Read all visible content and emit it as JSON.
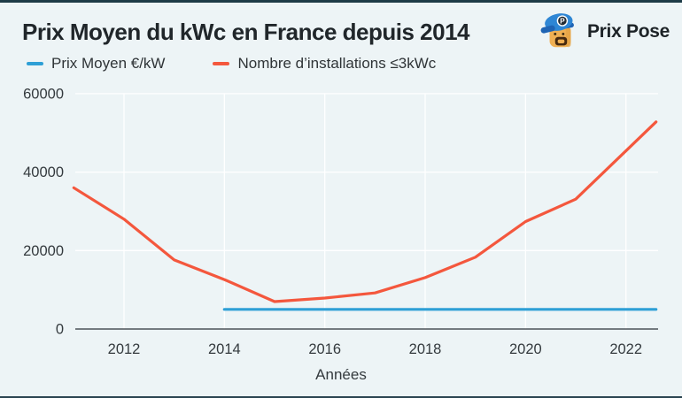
{
  "page": {
    "title": "Prix Moyen du kWc en France depuis 2014",
    "brand": "Prix Pose",
    "brand_initial": "P"
  },
  "colors": {
    "background": "#edf4f6",
    "gridline": "#ffffff",
    "axis": "#4d5359",
    "blue_series": "#2e9fd6",
    "orange_series": "#f4573d",
    "frame_edge": "#1d3b47"
  },
  "legend": [
    {
      "label": "Prix Moyen €/kW",
      "color": "#2e9fd6"
    },
    {
      "label": "Nombre d’installations ≤3kWc",
      "color": "#f4573d"
    }
  ],
  "chart_data": {
    "type": "line",
    "title": "Prix Moyen du kWc en France depuis 2014",
    "xlabel": "Années",
    "ylabel": "",
    "x_ticks": [
      2012,
      2014,
      2016,
      2018,
      2020,
      2022
    ],
    "y_ticks": [
      0,
      20000,
      40000,
      60000
    ],
    "xlim": [
      2011,
      2022.65
    ],
    "ylim": [
      0,
      61000
    ],
    "grid": true,
    "legend_position": "top-left",
    "series": [
      {
        "name": "Prix Moyen €/kW",
        "color": "#2e9fd6",
        "x": [
          2014,
          2022.6
        ],
        "values": [
          5000,
          5000
        ]
      },
      {
        "name": "Nombre d’installations ≤3kWc",
        "color": "#f4573d",
        "x": [
          2011,
          2012,
          2013,
          2014,
          2015,
          2016,
          2017,
          2018,
          2019,
          2020,
          2021,
          2022.6
        ],
        "values": [
          36000,
          28000,
          17600,
          12600,
          7000,
          7900,
          9200,
          13100,
          18300,
          27400,
          33100,
          52800
        ]
      }
    ]
  }
}
